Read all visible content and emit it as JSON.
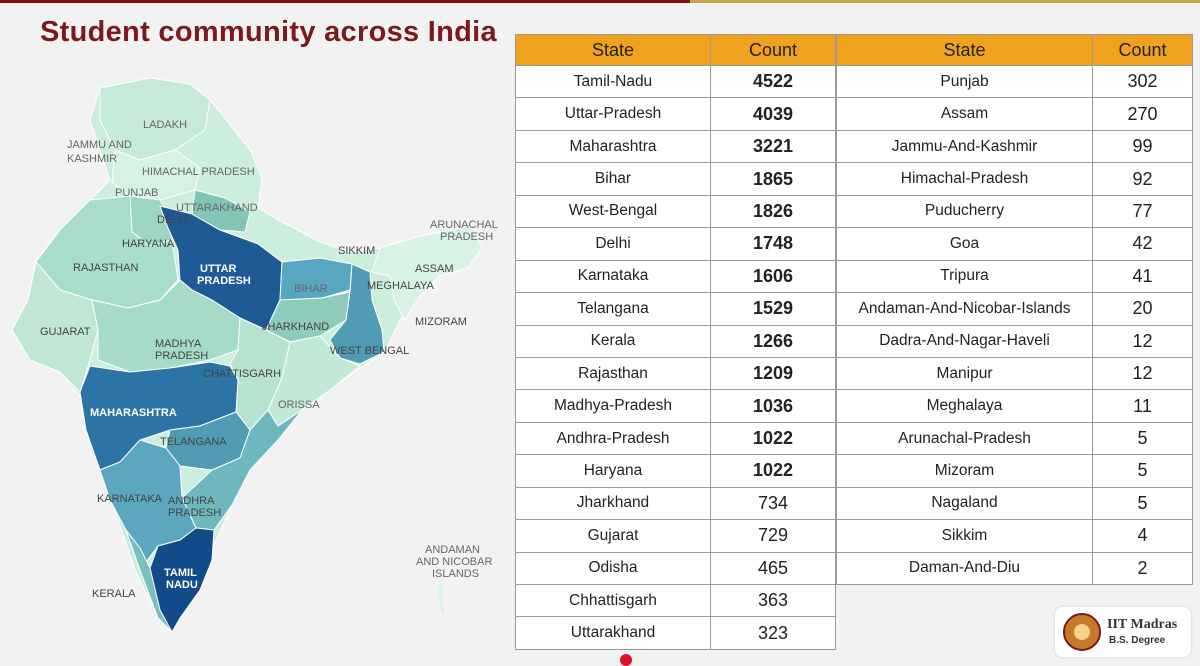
{
  "title": "Student community across India",
  "map": {
    "labels": {
      "ladakh": "LADAKH",
      "jk1": "JAMMU AND",
      "jk2": "KASHMIR",
      "hp": "HIMACHAL PRADESH",
      "punjab": "PUNJAB",
      "uttarakhand": "UTTARAKHAND",
      "delhi": "DELHI",
      "haryana": "HARYANA",
      "rajasthan": "RAJASTHAN",
      "up1": "UTTAR",
      "up2": "PRADESH",
      "bihar": "BIHAR",
      "sikkim": "SIKKIM",
      "ap1": "ARUNACHAL",
      "ap2": "PRADESH",
      "assam": "ASSAM",
      "meghalaya": "MEGHALAYA",
      "gujarat": "GUJARAT",
      "jharkhand": "JHARKHAND",
      "mizoram": "MIZORAM",
      "mp1": "MADHYA",
      "mp2": "PRADESH",
      "wb": "WEST BENGAL",
      "chhattisgarh": "CHATTISGARH",
      "orissa": "ORISSA",
      "maharashtra": "MAHARASHTRA",
      "telangana": "TELANGANA",
      "karnataka": "KARNATAKA",
      "andhra1": "ANDHRA",
      "andhra2": "PRADESH",
      "an1": "ANDAMAN",
      "an2": "AND NICOBAR",
      "an3": "ISLANDS",
      "tn1": "TAMIL",
      "tn2": "NADU",
      "kerala": "KERALA"
    }
  },
  "table": {
    "header_state": "State",
    "header_count": "Count",
    "left": [
      {
        "state": "Tamil-Nadu",
        "count": "4522"
      },
      {
        "state": "Uttar-Pradesh",
        "count": "4039"
      },
      {
        "state": "Maharashtra",
        "count": "3221"
      },
      {
        "state": "Bihar",
        "count": "1865"
      },
      {
        "state": "West-Bengal",
        "count": "1826"
      },
      {
        "state": "Delhi",
        "count": "1748"
      },
      {
        "state": "Karnataka",
        "count": "1606"
      },
      {
        "state": "Telangana",
        "count": "1529"
      },
      {
        "state": "Kerala",
        "count": "1266"
      },
      {
        "state": "Rajasthan",
        "count": "1209"
      },
      {
        "state": "Madhya-Pradesh",
        "count": "1036"
      },
      {
        "state": "Andhra-Pradesh",
        "count": "1022"
      },
      {
        "state": "Haryana",
        "count": "1022"
      },
      {
        "state": "Jharkhand",
        "count": "734"
      },
      {
        "state": "Gujarat",
        "count": "729"
      },
      {
        "state": "Odisha",
        "count": "465"
      },
      {
        "state": "Chhattisgarh",
        "count": "363"
      },
      {
        "state": "Uttarakhand",
        "count": "323"
      }
    ],
    "right": [
      {
        "state": "Punjab",
        "count": "302"
      },
      {
        "state": "Assam",
        "count": "270"
      },
      {
        "state": "Jammu-And-Kashmir",
        "count": "99"
      },
      {
        "state": "Himachal-Pradesh",
        "count": "92"
      },
      {
        "state": "Puducherry",
        "count": "77"
      },
      {
        "state": "Goa",
        "count": "42"
      },
      {
        "state": "Tripura",
        "count": "41"
      },
      {
        "state": "Andaman-And-Nicobar-Islands",
        "count": "20"
      },
      {
        "state": "Dadra-And-Nagar-Haveli",
        "count": "12"
      },
      {
        "state": "Manipur",
        "count": "12"
      },
      {
        "state": "Meghalaya",
        "count": "11"
      },
      {
        "state": "Arunachal-Pradesh",
        "count": "5"
      },
      {
        "state": "Mizoram",
        "count": "5"
      },
      {
        "state": "Nagaland",
        "count": "5"
      },
      {
        "state": "Sikkim",
        "count": "4"
      },
      {
        "state": "Daman-And-Diu",
        "count": "2"
      }
    ]
  },
  "badge": {
    "name": "IIT Madras",
    "sub": "B.S. Degree"
  },
  "colors": {
    "accent": "#f0a21c",
    "title": "#7a1a1a",
    "map_dark": "#1d5a96",
    "map_mid": "#4f9cb4",
    "map_light": "#b6e2cf"
  }
}
